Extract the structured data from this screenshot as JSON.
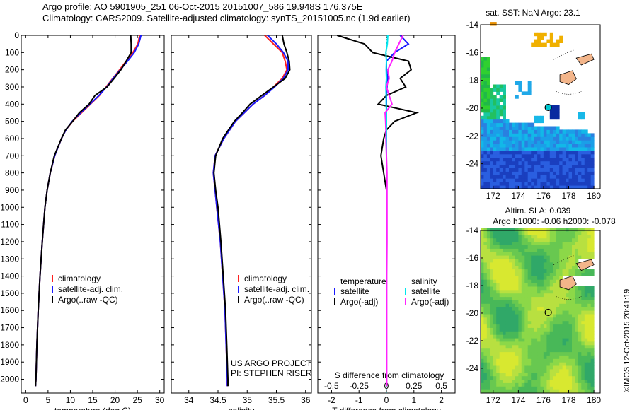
{
  "header": {
    "title_line1": "Argo profile: AO 5901905_251 06-Oct-2015 20151007_586 19.948S 176.375E",
    "title_line2": "Climatology: CARS2009. Satellite-adjusted climatology: synTS_20151005.nc (1.9d earlier)"
  },
  "stamp": "©IMOS 12-Oct-2015 20:41:19",
  "colors": {
    "climatology": "#ff2020",
    "satellite": "#1a1aff",
    "argo": "#000000",
    "sal_satellite": "#00e5ee",
    "sal_argo": "#ff22ff"
  },
  "chart_data": [
    {
      "type": "line",
      "panel": "temperature",
      "xlabel": "temperature (deg C)",
      "xlim": [
        -1,
        31
      ],
      "xticks": [
        "0",
        "5",
        "10",
        "15",
        "20",
        "25",
        "30"
      ],
      "ylim": [
        2080,
        0
      ],
      "yticks": [
        "0",
        "100",
        "200",
        "300",
        "400",
        "500",
        "600",
        "700",
        "800",
        "900",
        "1000",
        "1100",
        "1200",
        "1300",
        "1400",
        "1500",
        "1600",
        "1700",
        "1800",
        "1900",
        "2000"
      ],
      "legend": [
        "climatology",
        "satellite-adj. clim.",
        "Argo(..raw -QC)"
      ],
      "depth": [
        0,
        50,
        100,
        150,
        200,
        250,
        300,
        350,
        400,
        450,
        500,
        550,
        600,
        700,
        800,
        900,
        1000,
        1200,
        1400,
        1600,
        1800,
        2000,
        2040
      ],
      "series": [
        {
          "name": "climatology",
          "values": [
            25.5,
            25.1,
            24.0,
            22.5,
            21.0,
            19.5,
            18.0,
            16.5,
            14.5,
            12.5,
            10.5,
            9.0,
            8.0,
            6.5,
            5.5,
            4.8,
            4.3,
            3.7,
            3.2,
            2.8,
            2.5,
            2.3,
            2.2
          ]
        },
        {
          "name": "satellite-adj. clim.",
          "values": [
            25.8,
            25.3,
            24.3,
            22.8,
            21.2,
            19.6,
            18.1,
            16.4,
            14.4,
            12.3,
            10.4,
            9.0,
            8.0,
            6.5,
            5.5,
            4.8,
            4.3,
            3.7,
            3.2,
            2.8,
            2.5,
            2.3,
            2.2
          ]
        },
        {
          "name": "Argo(..raw -QC)",
          "values": [
            23.5,
            23.6,
            23.6,
            22.5,
            21.3,
            19.8,
            18.2,
            15.5,
            14.2,
            12.0,
            10.5,
            8.9,
            8.0,
            6.4,
            5.5,
            4.8,
            4.3,
            3.7,
            3.2,
            2.8,
            2.5,
            2.3,
            2.2
          ]
        }
      ]
    },
    {
      "type": "line",
      "panel": "salinity",
      "xlabel": "salinity",
      "xlim": [
        33.7,
        36.1
      ],
      "xticks": [
        "34",
        "34.5",
        "35",
        "35.5",
        "36"
      ],
      "ylim": [
        2080,
        0
      ],
      "legend": [
        "climatology",
        "satellite-adj. clim.",
        "Argo(..raw -QC)"
      ],
      "text_block": [
        "US ARGO PROJECT",
        "PI: STEPHEN RISER"
      ],
      "depth": [
        0,
        50,
        100,
        150,
        200,
        250,
        300,
        350,
        400,
        450,
        500,
        550,
        600,
        700,
        800,
        900,
        1000,
        1200,
        1400,
        1600,
        1800,
        2000,
        2040
      ],
      "series": [
        {
          "name": "climatology",
          "values": [
            35.3,
            35.45,
            35.6,
            35.65,
            35.68,
            35.6,
            35.45,
            35.3,
            35.1,
            34.95,
            34.8,
            34.7,
            34.6,
            34.45,
            34.42,
            34.45,
            34.48,
            34.54,
            34.58,
            34.62,
            34.64,
            34.66,
            34.66
          ]
        },
        {
          "name": "satellite-adj. clim.",
          "values": [
            35.35,
            35.5,
            35.62,
            35.7,
            35.7,
            35.62,
            35.47,
            35.3,
            35.1,
            34.95,
            34.8,
            34.7,
            34.6,
            34.45,
            34.42,
            34.45,
            34.48,
            34.54,
            34.58,
            34.62,
            34.64,
            34.66,
            34.66
          ]
        },
        {
          "name": "Argo(..raw -QC)",
          "values": [
            35.6,
            35.63,
            35.68,
            35.72,
            35.73,
            35.65,
            35.45,
            35.25,
            35.05,
            34.92,
            34.78,
            34.68,
            34.58,
            34.46,
            34.43,
            34.46,
            34.5,
            34.55,
            34.59,
            34.63,
            34.65,
            34.67,
            34.67
          ]
        }
      ]
    },
    {
      "type": "line",
      "panel": "difference",
      "xlabel": "T difference from climatology",
      "x2label": "S difference from climatology",
      "xlim": [
        -2.5,
        2.5
      ],
      "xticks": [
        "-2",
        "-1",
        "0",
        "1",
        "2"
      ],
      "x2ticks": [
        "-0.5",
        "-0.25",
        "0",
        "0.25",
        "0.5"
      ],
      "ylim": [
        2080,
        0
      ],
      "legend_titles": [
        "temperature",
        "salinity"
      ],
      "legend": [
        "satellite",
        "Argo(-adj)",
        "satellite",
        "Argo(-adj)"
      ],
      "depth": [
        0,
        50,
        100,
        150,
        200,
        250,
        300,
        350,
        400,
        450,
        500,
        550,
        600,
        700,
        800,
        900,
        1000,
        1200,
        1400,
        1600,
        1800,
        2000,
        2040
      ],
      "series": [
        {
          "name": "temperature satellite",
          "values": [
            0.5,
            0.8,
            0.3,
            0.0,
            0.0,
            0.05,
            0.02,
            0.0,
            0.0,
            0.0,
            0.0,
            0.0,
            0.0,
            0.0,
            0.0,
            0.0,
            0.0,
            0.0,
            0.0,
            0.0,
            0.0,
            0.0,
            0.0
          ]
        },
        {
          "name": "temperature Argo(-adj)",
          "values": [
            -1.8,
            -0.8,
            -0.5,
            0.8,
            0.9,
            0.5,
            0.7,
            0.0,
            -0.3,
            1.1,
            0.3,
            0.0,
            -0.1,
            -0.2,
            -0.1,
            0.0,
            0.0,
            0.0,
            0.0,
            0.0,
            0.0,
            0.0,
            0.0
          ]
        },
        {
          "name": "salinity satellite",
          "values": [
            0.05,
            0.03,
            -0.02,
            0.0,
            -0.01,
            0.0,
            -0.02,
            -0.01,
            -0.01,
            0.0,
            0.0,
            0.0,
            0.0,
            0.0,
            0.0,
            0.0,
            0.0,
            0.0,
            0.0,
            0.0,
            0.0,
            0.0,
            0.0
          ]
        },
        {
          "name": "salinity Argo(-adj)",
          "values": [
            0.6,
            0.45,
            0.3,
            0.2,
            0.05,
            0.1,
            0.0,
            0.1,
            0.2,
            -0.05,
            -0.03,
            -0.02,
            -0.02,
            0.0,
            0.02,
            0.02,
            0.02,
            0.02,
            0.01,
            0.01,
            0.01,
            0.01,
            0.01
          ]
        }
      ]
    },
    {
      "type": "heatmap",
      "panel": "sst_map",
      "title": "sat. SST: NaN Argo: 23.1",
      "xlim": [
        171,
        180.5
      ],
      "ylim": [
        -25.8,
        -14
      ],
      "xticks": [
        "172",
        "174",
        "176",
        "178",
        "180"
      ],
      "yticks": [
        "-14",
        "-16",
        "-18",
        "-20",
        "-22",
        "-24"
      ],
      "argo_position": [
        176.375,
        -19.948
      ]
    },
    {
      "type": "heatmap",
      "panel": "sla_map",
      "title_line1": "Altim. SLA: 0.039",
      "title_line2": "Argo h1000: -0.06 h2000: -0.078",
      "xlim": [
        171,
        180.5
      ],
      "ylim": [
        -25.8,
        -14
      ],
      "xticks": [
        "172",
        "174",
        "176",
        "178",
        "180"
      ],
      "yticks": [
        "-14",
        "-16",
        "-18",
        "-20",
        "-22",
        "-24"
      ],
      "argo_position": [
        176.375,
        -19.948
      ]
    }
  ]
}
